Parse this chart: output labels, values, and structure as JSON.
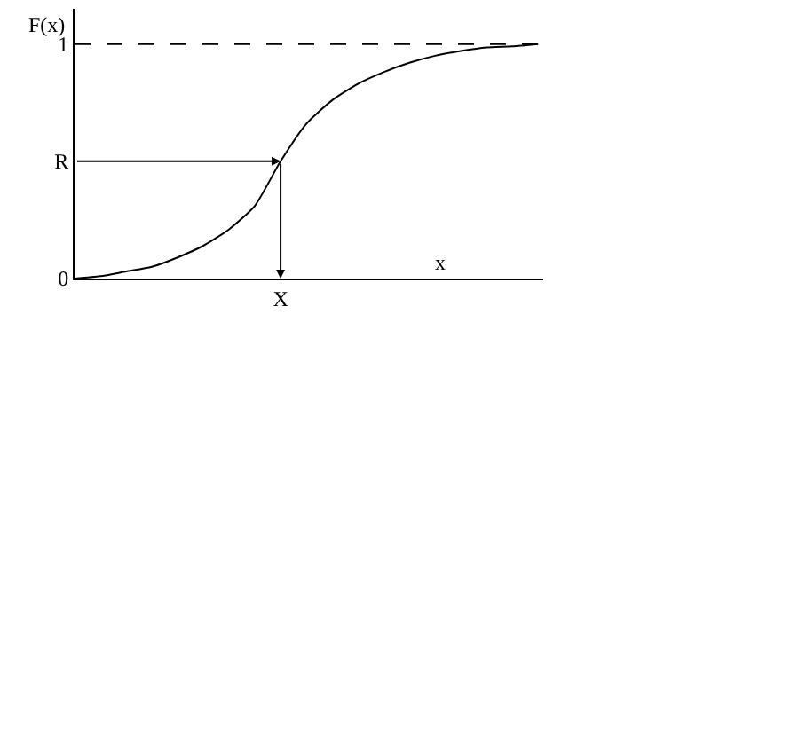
{
  "chart_data": {
    "type": "line",
    "xlabel": "x",
    "ylabel": "F(x)",
    "categories": [
      null,
      null,
      null,
      null,
      null,
      null,
      null,
      null,
      "X",
      null,
      null,
      null,
      null,
      null,
      null,
      null,
      null,
      null,
      null
    ],
    "series": [
      {
        "color": "#000000",
        "values": [
          0,
          0.01,
          0.03,
          0.05,
          0.09,
          0.14,
          0.21,
          0.31,
          0.5,
          0.66,
          0.76,
          0.83,
          0.88,
          0.92,
          0.95,
          0.97,
          0.985,
          0.99,
          1.0
        ]
      }
    ],
    "ylim": [
      0,
      1.15
    ],
    "yticks": [
      0,
      {
        "value": 0.5,
        "label": "R"
      },
      1
    ],
    "ref_lines": [
      {
        "axis": "y",
        "value": 1,
        "line_style": "dashed",
        "color": "#000000"
      }
    ],
    "marker": "none",
    "line_style": "solid"
  }
}
